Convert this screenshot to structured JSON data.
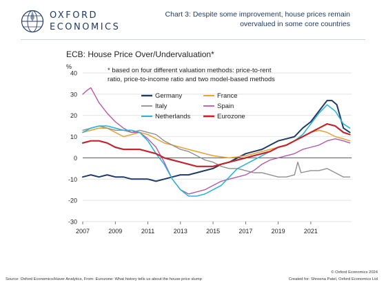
{
  "brand": {
    "line1": "OXFORD",
    "line2": "ECONOMICS",
    "color": "#1f3a64"
  },
  "header": {
    "title_line1": "Chart 3: Despite some improvement, house prices remain",
    "title_line2": "overvalued in some core countries"
  },
  "chart_data": {
    "type": "line",
    "title": "ECB: House Price Over/Undervaluation*",
    "note_line1": "* based on four different valuation methods: price-to-rent",
    "note_line2": "ratio, price-to-income ratio and two model-based methods",
    "ylabel": "%",
    "xlabel": "",
    "ylim": [
      -30,
      40
    ],
    "xlim": [
      2007,
      2023.5
    ],
    "yticks": [
      -30,
      -20,
      -10,
      0,
      10,
      20,
      30,
      40
    ],
    "xticks": [
      2007,
      2009,
      2011,
      2013,
      2015,
      2017,
      2019,
      2021
    ],
    "legend_position": "top-center",
    "series": [
      {
        "name": "Germany",
        "color": "#1f3a64",
        "width": 2,
        "points": [
          [
            2007,
            -9
          ],
          [
            2007.5,
            -8
          ],
          [
            2008,
            -9
          ],
          [
            2008.5,
            -8
          ],
          [
            2009,
            -9
          ],
          [
            2009.5,
            -9
          ],
          [
            2010,
            -10
          ],
          [
            2010.5,
            -10
          ],
          [
            2011,
            -10
          ],
          [
            2011.5,
            -11
          ],
          [
            2012,
            -10
          ],
          [
            2012.5,
            -9
          ],
          [
            2013,
            -8
          ],
          [
            2013.5,
            -8
          ],
          [
            2014,
            -7
          ],
          [
            2014.5,
            -6
          ],
          [
            2015,
            -5
          ],
          [
            2015.5,
            -3
          ],
          [
            2016,
            -2
          ],
          [
            2016.5,
            0
          ],
          [
            2017,
            2
          ],
          [
            2017.5,
            3
          ],
          [
            2018,
            4
          ],
          [
            2018.5,
            6
          ],
          [
            2019,
            8
          ],
          [
            2019.5,
            9
          ],
          [
            2020,
            10
          ],
          [
            2020.5,
            14
          ],
          [
            2021,
            17
          ],
          [
            2021.5,
            22
          ],
          [
            2022,
            27
          ],
          [
            2022.3,
            27
          ],
          [
            2022.6,
            25
          ],
          [
            2023,
            14
          ],
          [
            2023.4,
            12
          ]
        ]
      },
      {
        "name": "France",
        "color": "#e8a33d",
        "width": 1.6,
        "points": [
          [
            2007,
            12
          ],
          [
            2007.5,
            13
          ],
          [
            2008,
            14
          ],
          [
            2008.5,
            14
          ],
          [
            2009,
            12
          ],
          [
            2009.5,
            10
          ],
          [
            2010,
            11
          ],
          [
            2010.5,
            12
          ],
          [
            2011,
            11
          ],
          [
            2011.5,
            9
          ],
          [
            2012,
            7
          ],
          [
            2012.5,
            6
          ],
          [
            2013,
            5
          ],
          [
            2013.5,
            4
          ],
          [
            2014,
            3
          ],
          [
            2014.5,
            2
          ],
          [
            2015,
            1
          ],
          [
            2015.5,
            0.5
          ],
          [
            2016,
            0
          ],
          [
            2016.5,
            0.5
          ],
          [
            2017,
            1
          ],
          [
            2017.5,
            2
          ],
          [
            2018,
            3
          ],
          [
            2018.5,
            4
          ],
          [
            2019,
            5
          ],
          [
            2019.5,
            6
          ],
          [
            2020,
            8
          ],
          [
            2020.5,
            10
          ],
          [
            2021,
            12
          ],
          [
            2021.5,
            13
          ],
          [
            2022,
            12
          ],
          [
            2022.5,
            10
          ],
          [
            2023,
            9
          ],
          [
            2023.4,
            8
          ]
        ]
      },
      {
        "name": "Italy",
        "color": "#8e8e8e",
        "width": 1.4,
        "points": [
          [
            2007,
            13
          ],
          [
            2007.5,
            14
          ],
          [
            2008,
            15
          ],
          [
            2008.5,
            14
          ],
          [
            2009,
            13
          ],
          [
            2009.5,
            13
          ],
          [
            2010,
            12
          ],
          [
            2010.5,
            13
          ],
          [
            2011,
            12
          ],
          [
            2011.5,
            11
          ],
          [
            2012,
            8
          ],
          [
            2012.5,
            6
          ],
          [
            2013,
            4
          ],
          [
            2013.5,
            3
          ],
          [
            2014,
            1
          ],
          [
            2014.5,
            -1
          ],
          [
            2015,
            -2
          ],
          [
            2015.5,
            -4
          ],
          [
            2016,
            -5
          ],
          [
            2016.5,
            -5
          ],
          [
            2017,
            -6
          ],
          [
            2017.5,
            -7
          ],
          [
            2018,
            -7
          ],
          [
            2018.5,
            -8
          ],
          [
            2019,
            -9
          ],
          [
            2019.5,
            -9
          ],
          [
            2020,
            -8
          ],
          [
            2020.2,
            -2
          ],
          [
            2020.4,
            -7
          ],
          [
            2021,
            -6
          ],
          [
            2021.5,
            -6
          ],
          [
            2022,
            -5
          ],
          [
            2022.5,
            -7
          ],
          [
            2023,
            -9
          ],
          [
            2023.4,
            -9
          ]
        ]
      },
      {
        "name": "Spain",
        "color": "#b557a9",
        "width": 1.4,
        "points": [
          [
            2007,
            30
          ],
          [
            2007.3,
            32
          ],
          [
            2007.5,
            33
          ],
          [
            2008,
            26
          ],
          [
            2008.5,
            21
          ],
          [
            2009,
            17
          ],
          [
            2009.5,
            14
          ],
          [
            2010,
            12
          ],
          [
            2010.5,
            12
          ],
          [
            2011,
            9
          ],
          [
            2011.5,
            5
          ],
          [
            2012,
            -2
          ],
          [
            2012.5,
            -10
          ],
          [
            2013,
            -15
          ],
          [
            2013.5,
            -17
          ],
          [
            2014,
            -16
          ],
          [
            2014.5,
            -15
          ],
          [
            2015,
            -13
          ],
          [
            2015.5,
            -11
          ],
          [
            2016,
            -10
          ],
          [
            2016.5,
            -9
          ],
          [
            2017,
            -8
          ],
          [
            2017.5,
            -6
          ],
          [
            2018,
            -3
          ],
          [
            2018.5,
            -1
          ],
          [
            2019,
            0
          ],
          [
            2019.5,
            1
          ],
          [
            2020,
            2
          ],
          [
            2020.5,
            4
          ],
          [
            2021,
            5
          ],
          [
            2021.5,
            6
          ],
          [
            2022,
            8
          ],
          [
            2022.5,
            9
          ],
          [
            2023,
            8
          ],
          [
            2023.4,
            7
          ]
        ]
      },
      {
        "name": "Netherlands",
        "color": "#2cb4d7",
        "width": 1.6,
        "points": [
          [
            2007,
            12
          ],
          [
            2007.5,
            14
          ],
          [
            2008,
            15
          ],
          [
            2008.5,
            15
          ],
          [
            2009,
            14
          ],
          [
            2009.5,
            13
          ],
          [
            2010,
            13
          ],
          [
            2010.5,
            12
          ],
          [
            2011,
            8
          ],
          [
            2011.5,
            2
          ],
          [
            2012,
            -3
          ],
          [
            2012.5,
            -10
          ],
          [
            2013,
            -15
          ],
          [
            2013.5,
            -18
          ],
          [
            2014,
            -18
          ],
          [
            2014.5,
            -17
          ],
          [
            2015,
            -15
          ],
          [
            2015.5,
            -13
          ],
          [
            2016,
            -9
          ],
          [
            2016.5,
            -5
          ],
          [
            2017,
            -3
          ],
          [
            2017.5,
            -1
          ],
          [
            2018,
            1
          ],
          [
            2018.5,
            3
          ],
          [
            2019,
            5
          ],
          [
            2019.5,
            6
          ],
          [
            2020,
            8
          ],
          [
            2020.5,
            11
          ],
          [
            2021,
            16
          ],
          [
            2021.5,
            21
          ],
          [
            2022,
            25
          ],
          [
            2022.5,
            22
          ],
          [
            2023,
            16
          ],
          [
            2023.4,
            14
          ]
        ]
      },
      {
        "name": "Eurozone",
        "color": "#c0262d",
        "width": 2.2,
        "points": [
          [
            2007,
            7
          ],
          [
            2007.5,
            8
          ],
          [
            2008,
            8
          ],
          [
            2008.5,
            7
          ],
          [
            2009,
            5
          ],
          [
            2009.5,
            4
          ],
          [
            2010,
            4
          ],
          [
            2010.5,
            4
          ],
          [
            2011,
            3
          ],
          [
            2011.5,
            2
          ],
          [
            2012,
            0
          ],
          [
            2012.5,
            -1
          ],
          [
            2013,
            -2
          ],
          [
            2013.5,
            -3
          ],
          [
            2014,
            -4
          ],
          [
            2014.5,
            -4
          ],
          [
            2015,
            -4
          ],
          [
            2015.5,
            -3
          ],
          [
            2016,
            -2
          ],
          [
            2016.5,
            -1
          ],
          [
            2017,
            0
          ],
          [
            2017.5,
            1
          ],
          [
            2018,
            2
          ],
          [
            2018.5,
            3
          ],
          [
            2019,
            5
          ],
          [
            2019.5,
            6
          ],
          [
            2020,
            8
          ],
          [
            2020.5,
            10
          ],
          [
            2021,
            12
          ],
          [
            2021.5,
            14
          ],
          [
            2022,
            16
          ],
          [
            2022.5,
            15
          ],
          [
            2023,
            12
          ],
          [
            2023.4,
            11
          ]
        ]
      }
    ]
  },
  "footer": {
    "source": "Source: Oxford Economics/Haver Analytics, From: Eurozone: What history tells us about the house price slump",
    "copyright": "© Oxford Economics 2024",
    "created_for": "Created for: Shreena Patel, Oxford Economics Ltd"
  }
}
